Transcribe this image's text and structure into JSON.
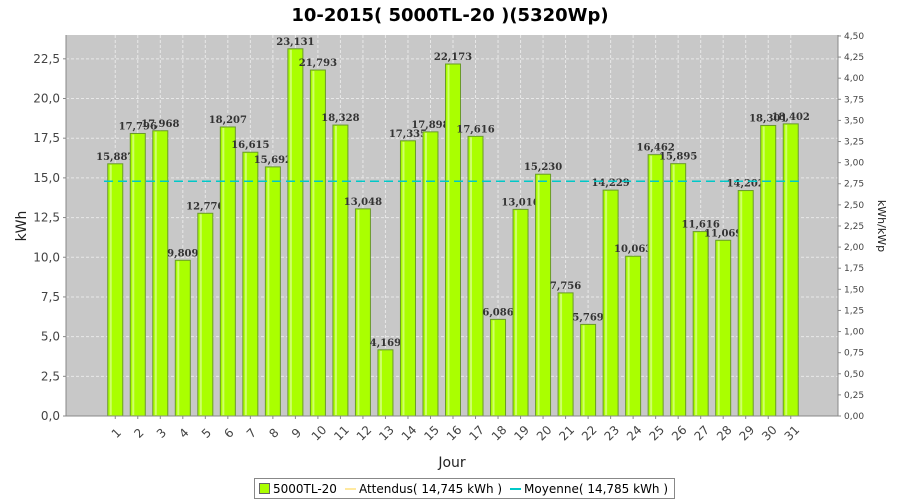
{
  "chart_data": {
    "type": "bar",
    "title": "10-2015( 5000TL-20 )(5320Wp)",
    "xlabel": "Jour",
    "ylabel": "kWh",
    "ylabel_right": "kWh/kWp",
    "ylim": [
      0,
      24
    ],
    "ylim_right": [
      0,
      4.5113
    ],
    "yticks": [
      "0,0",
      "2,5",
      "5,0",
      "7,5",
      "10,0",
      "12,5",
      "15,0",
      "17,5",
      "20,0",
      "22,5"
    ],
    "yticks_right": [
      "0,00",
      "0,25",
      "0,50",
      "0,75",
      "1,00",
      "1,25",
      "1,50",
      "1,75",
      "2,00",
      "2,25",
      "2,50",
      "2,75",
      "3,00",
      "3,25",
      "3,50",
      "3,75",
      "4,00",
      "4,25",
      "4,50"
    ],
    "categories": [
      "1",
      "2",
      "3",
      "4",
      "5",
      "6",
      "7",
      "8",
      "9",
      "10",
      "11",
      "12",
      "13",
      "14",
      "15",
      "16",
      "17",
      "18",
      "19",
      "20",
      "21",
      "22",
      "23",
      "24",
      "25",
      "26",
      "27",
      "28",
      "29",
      "30",
      "31"
    ],
    "series": [
      {
        "name": "5000TL-20",
        "values": [
          15.887,
          17.796,
          17.968,
          9.809,
          12.77,
          18.207,
          16.615,
          15.692,
          23.131,
          21.793,
          18.328,
          13.048,
          4.169,
          17.335,
          17.898,
          22.173,
          17.616,
          6.086,
          13.016,
          15.23,
          7.756,
          5.769,
          14.229,
          10.063,
          16.462,
          15.895,
          11.616,
          11.069,
          14.202,
          18.301,
          18.402
        ],
        "labels": [
          "15,887",
          "17,796",
          "17,968",
          "9,809",
          "12,770",
          "18,207",
          "16,615",
          "15,692",
          "23,131",
          "21,793",
          "18,328",
          "13,048",
          "4,169",
          "17,335",
          "17,898",
          "22,173",
          "17,616",
          "6,086",
          "13,016",
          "15,230",
          "7,756",
          "5,769",
          "14,229",
          "10,063",
          "16,462",
          "15,895",
          "11,616",
          "11,069",
          "14,202",
          "18,301",
          "18,402"
        ]
      }
    ],
    "average": 14.785,
    "grid": true,
    "legend_position": "bottom",
    "colors": {
      "bar": "#aaff00",
      "bar_stroke": "#6a9a2a",
      "plot_bg": "#c8c8c8",
      "grid": "#e8e8e8",
      "average_line": "#00c8c8",
      "attendus_line": "#ffe9a0"
    }
  },
  "legend": {
    "items": [
      {
        "label": "5000TL-20",
        "kind": "box",
        "color": "#aaff00"
      },
      {
        "label": "Attendus( 14,745 kWh )",
        "kind": "line",
        "color": "#ffe9a0"
      },
      {
        "label": "Moyenne( 14,785 kWh )",
        "kind": "line",
        "color": "#00c8c8"
      }
    ]
  }
}
